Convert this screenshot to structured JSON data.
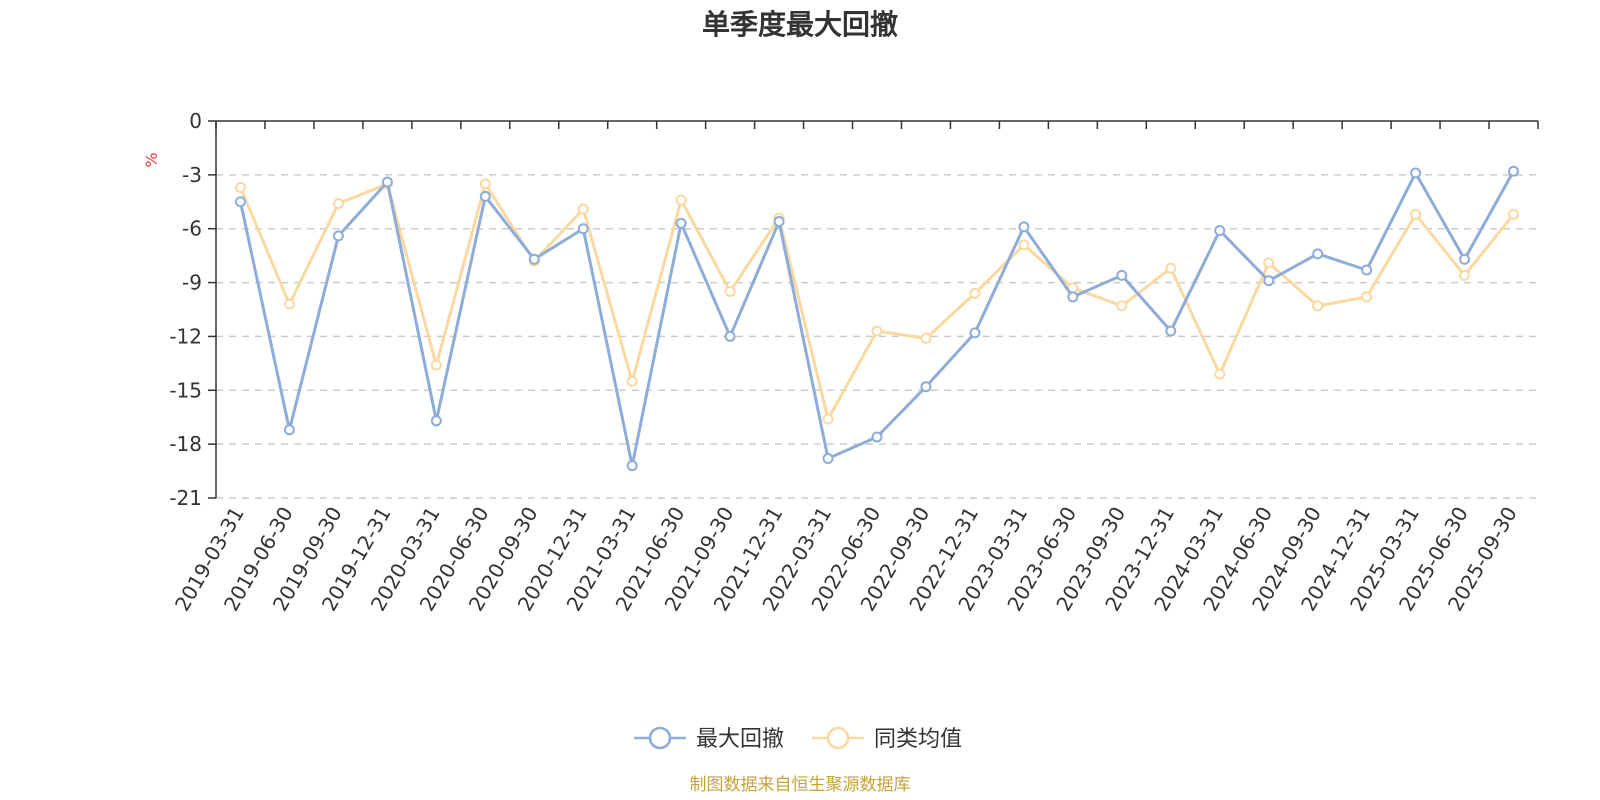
{
  "chart_data": {
    "type": "line",
    "title": "单季度最大回撤",
    "ylabel": "%",
    "ylim": [
      -21,
      0
    ],
    "y_ticks": [
      0,
      -3,
      -6,
      -9,
      -12,
      -15,
      -18,
      -21
    ],
    "grid": true,
    "legend_position": "bottom-center",
    "categories": [
      "2019-03-31",
      "2019-06-30",
      "2019-09-30",
      "2019-12-31",
      "2020-03-31",
      "2020-06-30",
      "2020-09-30",
      "2020-12-31",
      "2021-03-31",
      "2021-06-30",
      "2021-09-30",
      "2021-12-31",
      "2022-03-31",
      "2022-06-30",
      "2022-09-30",
      "2022-12-31",
      "2023-03-31",
      "2023-06-30",
      "2023-09-30",
      "2023-12-31",
      "2024-03-31",
      "2024-06-30",
      "2024-09-30",
      "2024-12-31",
      "2025-03-31",
      "2025-06-30",
      "2025-09-30"
    ],
    "series": [
      {
        "name": "最大回撤",
        "color": "#8eacd8",
        "values": [
          -4.5,
          -17.2,
          -6.4,
          -3.4,
          -16.7,
          -4.2,
          -7.7,
          -6.0,
          -19.2,
          -5.7,
          -12.0,
          -5.6,
          -18.8,
          -17.6,
          -14.8,
          -11.8,
          -5.9,
          -9.8,
          -8.6,
          -11.7,
          -6.1,
          -8.9,
          -7.4,
          -8.3,
          -2.9,
          -7.7,
          -2.8
        ]
      },
      {
        "name": "同类均值",
        "color": "#fad9a1",
        "values": [
          -3.7,
          -10.2,
          -4.6,
          -3.5,
          -13.6,
          -3.5,
          -7.8,
          -4.9,
          -14.5,
          -4.4,
          -9.5,
          -5.4,
          -16.6,
          -11.7,
          -12.1,
          -9.6,
          -6.9,
          -9.3,
          -10.3,
          -8.2,
          -14.1,
          -7.9,
          -10.3,
          -9.8,
          -5.2,
          -8.6,
          -5.2
        ]
      }
    ],
    "unit_color": "#e03c3c"
  },
  "footer": {
    "source": "制图数据来自恒生聚源数据库",
    "color": "#c9a13c"
  }
}
